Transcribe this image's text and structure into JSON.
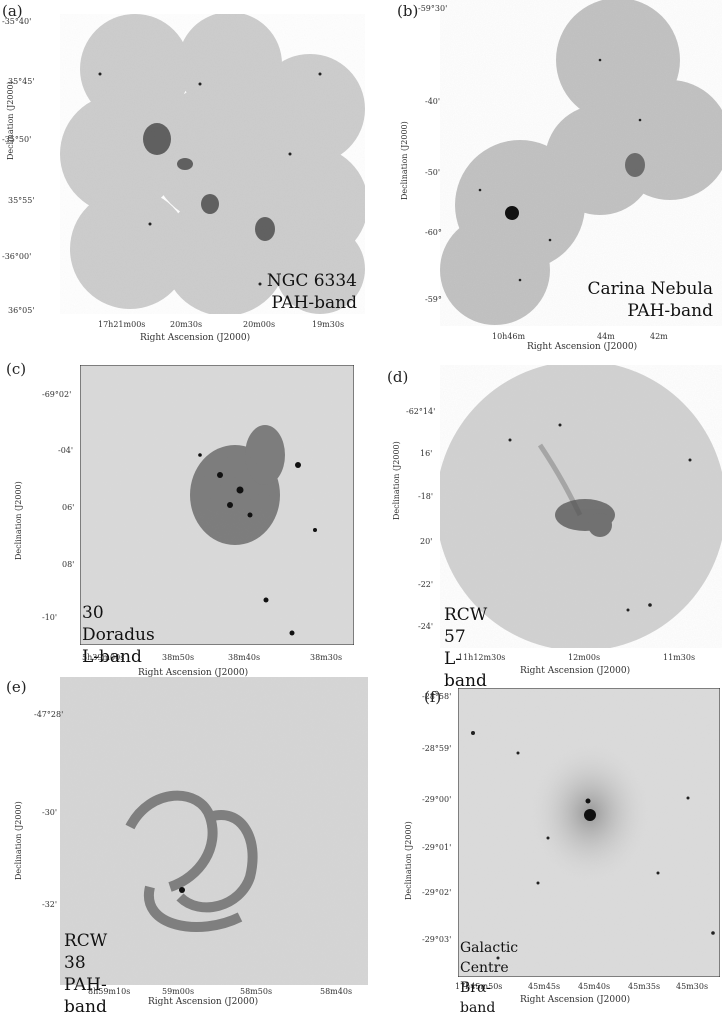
{
  "panels": [
    {
      "id": "a",
      "label": "(a)",
      "name": "NGC 6334",
      "band": "PAH-band",
      "ylabel": "Declination (J2000)",
      "xlabel": "Right Ascension (J2000)",
      "yticks": [
        "-35°40'",
        "35°45'",
        "-35°50'",
        "35°55'",
        "-36°00'",
        "36°05'"
      ],
      "xticks": [
        "17h21m00s",
        "20m30s",
        "20m00s",
        "19m30s"
      ]
    },
    {
      "id": "b",
      "label": "(b)",
      "name": "Carina Nebula",
      "band": "PAH-band",
      "ylabel": "Declination (J2000)",
      "xlabel": "Right Ascension (J2000)",
      "yticks": [
        "-59°30'",
        "-40'",
        "-50'",
        "-60°",
        "-59°"
      ],
      "xticks": [
        "10h46m",
        "44m",
        "42m"
      ]
    },
    {
      "id": "c",
      "label": "(c)",
      "name": "30 Doradus",
      "band": "L-band",
      "ylabel": "Declination (J2000)",
      "xlabel": "Right Ascension (J2000)",
      "yticks": [
        "-69°02'",
        "-04'",
        "06'",
        "08'",
        "-10'"
      ],
      "xticks": [
        "5h39m00s",
        "38m50s",
        "38m40s",
        "38m30s"
      ]
    },
    {
      "id": "d",
      "label": "(d)",
      "name": "RCW 57",
      "band": "L-band",
      "ylabel": "Declination (J2000)",
      "xlabel": "Right Ascension (J2000)",
      "yticks": [
        "-62°14'",
        "16'",
        "-18'",
        "20'",
        "-22'",
        "-24'"
      ],
      "xticks": [
        "11h12m30s",
        "12m00s",
        "11m30s"
      ]
    },
    {
      "id": "e",
      "label": "(e)",
      "name": "RCW 38",
      "band": "PAH-band",
      "ylabel": "Declination (J2000)",
      "xlabel": "Right Ascension (J2000)",
      "yticks": [
        "-47°28'",
        "-30'",
        "-32'"
      ],
      "xticks": [
        "8h59m10s",
        "59m00s",
        "58m50s",
        "58m40s"
      ]
    },
    {
      "id": "f",
      "label": "(f)",
      "name": "Galactic Centre",
      "band": "Brα-band",
      "ylabel": "Declination (J2000)",
      "xlabel": "Right Ascension (J2000)",
      "yticks": [
        "-28°58'",
        "-28°59'",
        "-29°00'",
        "-29°01'",
        "-29°02'",
        "-29°03'"
      ],
      "xticks": [
        "17h45m50s",
        "45m45s",
        "45m40s",
        "45m35s",
        "45m30s"
      ]
    }
  ]
}
